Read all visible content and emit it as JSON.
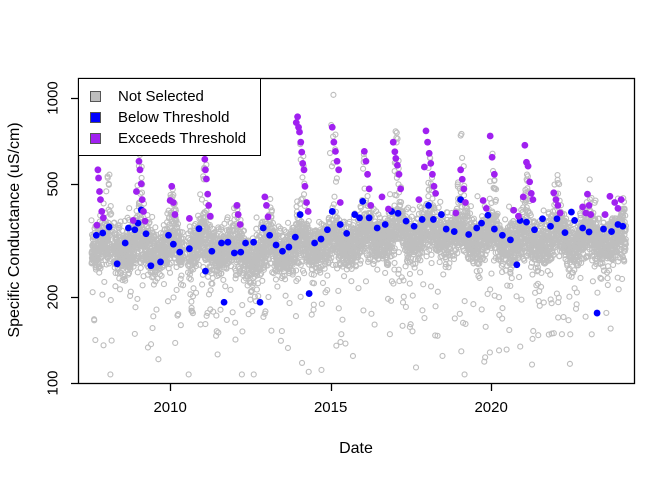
{
  "legend": {
    "items": [
      {
        "label": "Not Selected",
        "color": "#bebebe"
      },
      {
        "label": "Below Threshold",
        "color": "#0000ff"
      },
      {
        "label": "Exceeds Threshold",
        "color": "#a020f0"
      }
    ]
  },
  "chart_data": {
    "type": "scatter",
    "title": "",
    "xlabel": "Date",
    "ylabel": "Specific Conductance (uS/cm)",
    "x_scale": "linear-years",
    "y_scale": "log10",
    "xlim": [
      2007.13,
      2024.45
    ],
    "ylim": [
      100,
      1176
    ],
    "x_ticks": [
      2010,
      2015,
      2020
    ],
    "y_ticks": [
      100,
      200,
      500,
      1000
    ],
    "grid": false,
    "legend_position": "top-left-inside",
    "series": [
      {
        "name": "Not Selected",
        "marker": "open-circle",
        "color": "#bebebe",
        "generated": true,
        "description": "Dense near-daily record ~2007.5-2024.2, baseline ~280-400 uS/cm with winter salt spikes and occasional low dilution outliers down to ~110"
      },
      {
        "name": "Below Threshold",
        "marker": "filled-circle",
        "color": "#0000ff",
        "points": [
          [
            2007.7,
            330
          ],
          [
            2007.9,
            336
          ],
          [
            2008.1,
            353
          ],
          [
            2008.35,
            262
          ],
          [
            2008.6,
            310
          ],
          [
            2008.7,
            350
          ],
          [
            2008.9,
            345
          ],
          [
            2009.0,
            364
          ],
          [
            2009.1,
            405
          ],
          [
            2009.25,
            334
          ],
          [
            2009.4,
            258
          ],
          [
            2009.7,
            266
          ],
          [
            2009.95,
            330
          ],
          [
            2010.1,
            307
          ],
          [
            2010.3,
            288
          ],
          [
            2010.6,
            296
          ],
          [
            2010.9,
            348
          ],
          [
            2011.1,
            247
          ],
          [
            2011.3,
            290
          ],
          [
            2011.6,
            310
          ],
          [
            2011.68,
            192
          ],
          [
            2011.8,
            312
          ],
          [
            2012.0,
            286
          ],
          [
            2012.2,
            288
          ],
          [
            2012.35,
            310
          ],
          [
            2012.6,
            312
          ],
          [
            2012.8,
            192
          ],
          [
            2012.9,
            350
          ],
          [
            2013.1,
            330
          ],
          [
            2013.3,
            305
          ],
          [
            2013.5,
            290
          ],
          [
            2013.7,
            300
          ],
          [
            2013.9,
            325
          ],
          [
            2014.05,
            390
          ],
          [
            2014.33,
            206
          ],
          [
            2014.5,
            310
          ],
          [
            2014.7,
            320
          ],
          [
            2014.9,
            345
          ],
          [
            2015.05,
            400
          ],
          [
            2015.3,
            360
          ],
          [
            2015.5,
            335
          ],
          [
            2015.75,
            390
          ],
          [
            2015.9,
            380
          ],
          [
            2016.0,
            434
          ],
          [
            2016.2,
            380
          ],
          [
            2016.45,
            350
          ],
          [
            2016.7,
            360
          ],
          [
            2016.9,
            400
          ],
          [
            2017.1,
            394
          ],
          [
            2017.35,
            370
          ],
          [
            2017.6,
            355
          ],
          [
            2017.85,
            375
          ],
          [
            2018.05,
            420
          ],
          [
            2018.2,
            375
          ],
          [
            2018.45,
            390
          ],
          [
            2018.6,
            347
          ],
          [
            2018.85,
            340
          ],
          [
            2019.05,
            440
          ],
          [
            2019.3,
            332
          ],
          [
            2019.55,
            350
          ],
          [
            2019.7,
            364
          ],
          [
            2019.9,
            388
          ],
          [
            2020.1,
            347
          ],
          [
            2020.35,
            330
          ],
          [
            2020.6,
            318
          ],
          [
            2020.8,
            260
          ],
          [
            2020.9,
            372
          ],
          [
            2021.1,
            367
          ],
          [
            2021.35,
            345
          ],
          [
            2021.6,
            377
          ],
          [
            2021.85,
            355
          ],
          [
            2022.05,
            377
          ],
          [
            2022.3,
            337
          ],
          [
            2022.5,
            398
          ],
          [
            2022.6,
            372
          ],
          [
            2022.85,
            350
          ],
          [
            2023.05,
            339
          ],
          [
            2023.3,
            176
          ],
          [
            2023.5,
            347
          ],
          [
            2023.75,
            340
          ],
          [
            2023.95,
            360
          ],
          [
            2024.1,
            355
          ]
        ]
      },
      {
        "name": "Exceeds Threshold",
        "marker": "filled-circle",
        "color": "#a020f0",
        "points": [
          [
            2007.72,
            358
          ],
          [
            2007.75,
            560
          ],
          [
            2007.77,
            524
          ],
          [
            2007.8,
            470
          ],
          [
            2007.83,
            440
          ],
          [
            2007.87,
            400
          ],
          [
            2007.92,
            380
          ],
          [
            2008.85,
            372
          ],
          [
            2008.95,
            470
          ],
          [
            2009.0,
            660
          ],
          [
            2009.03,
            600
          ],
          [
            2009.06,
            560
          ],
          [
            2009.1,
            500
          ],
          [
            2009.13,
            440
          ],
          [
            2009.17,
            400
          ],
          [
            2009.22,
            370
          ],
          [
            2010.0,
            437
          ],
          [
            2010.05,
            490
          ],
          [
            2010.1,
            430
          ],
          [
            2010.15,
            390
          ],
          [
            2010.6,
            378
          ],
          [
            2011.02,
            700
          ],
          [
            2011.05,
            650
          ],
          [
            2011.08,
            610
          ],
          [
            2011.1,
            560
          ],
          [
            2011.13,
            520
          ],
          [
            2011.17,
            460
          ],
          [
            2011.2,
            420
          ],
          [
            2011.25,
            385
          ],
          [
            2012.08,
            420
          ],
          [
            2012.12,
            390
          ],
          [
            2012.18,
            360
          ],
          [
            2012.95,
            450
          ],
          [
            2013.0,
            420
          ],
          [
            2013.05,
            383
          ],
          [
            2013.93,
            820
          ],
          [
            2013.97,
            860
          ],
          [
            2014.0,
            790
          ],
          [
            2014.03,
            760
          ],
          [
            2014.07,
            700
          ],
          [
            2014.1,
            646
          ],
          [
            2014.13,
            590
          ],
          [
            2014.17,
            560
          ],
          [
            2014.2,
            490
          ],
          [
            2014.25,
            430
          ],
          [
            2014.3,
            400
          ],
          [
            2015.05,
            790
          ],
          [
            2015.1,
            700
          ],
          [
            2015.15,
            650
          ],
          [
            2015.2,
            600
          ],
          [
            2015.25,
            560
          ],
          [
            2015.3,
            430
          ],
          [
            2016.05,
            650
          ],
          [
            2016.1,
            600
          ],
          [
            2016.15,
            540
          ],
          [
            2016.2,
            480
          ],
          [
            2016.25,
            420
          ],
          [
            2016.6,
            450
          ],
          [
            2016.8,
            408
          ],
          [
            2016.95,
            700
          ],
          [
            2017.0,
            648
          ],
          [
            2017.03,
            614
          ],
          [
            2017.08,
            581
          ],
          [
            2017.13,
            540
          ],
          [
            2017.18,
            480
          ],
          [
            2017.75,
            440
          ],
          [
            2017.92,
            573
          ],
          [
            2017.97,
            767
          ],
          [
            2018.02,
            700
          ],
          [
            2018.07,
            640
          ],
          [
            2018.12,
            590
          ],
          [
            2018.17,
            540
          ],
          [
            2018.22,
            490
          ],
          [
            2018.27,
            463
          ],
          [
            2018.9,
            395
          ],
          [
            2019.05,
            560
          ],
          [
            2019.1,
            519
          ],
          [
            2019.15,
            480
          ],
          [
            2019.2,
            430
          ],
          [
            2019.75,
            437
          ],
          [
            2019.85,
            410
          ],
          [
            2019.97,
            736
          ],
          [
            2020.03,
            620
          ],
          [
            2020.1,
            540
          ],
          [
            2020.7,
            404
          ],
          [
            2020.85,
            385
          ],
          [
            2021.0,
            450
          ],
          [
            2021.05,
            683
          ],
          [
            2021.1,
            595
          ],
          [
            2021.15,
            577
          ],
          [
            2021.2,
            508
          ],
          [
            2021.25,
            463
          ],
          [
            2021.3,
            440
          ],
          [
            2021.95,
            465
          ],
          [
            2022.02,
            440
          ],
          [
            2022.08,
            420
          ],
          [
            2022.15,
            395
          ],
          [
            2022.85,
            415
          ],
          [
            2022.95,
            395
          ],
          [
            2023.0,
            460
          ],
          [
            2023.05,
            420
          ],
          [
            2023.1,
            390
          ],
          [
            2023.55,
            390
          ],
          [
            2023.7,
            452
          ],
          [
            2023.85,
            430
          ],
          [
            2023.95,
            410
          ],
          [
            2024.05,
            440
          ]
        ]
      }
    ],
    "not_selected_generator": {
      "seed": 7,
      "x_start": 2007.55,
      "x_end": 2024.2,
      "points_per_year": 365,
      "base_log10": 2.497,
      "noise_sd": 0.042,
      "season_amp": 0.022,
      "season_phase": 0.05,
      "spike_prob": 0.28,
      "spike_shape": 1.5,
      "dip_prob": 0.04,
      "deep_dip_prob": 0.004,
      "gaps": [
        [
          2010.41,
          2010.55
        ],
        [
          2008.18,
          2008.24
        ]
      ],
      "year_offsets": {
        "2007": -0.02,
        "2008": -0.022,
        "2009": -0.027,
        "2010": -0.02,
        "2011": -0.022,
        "2012": -0.05,
        "2013": -0.032,
        "2014": -0.012,
        "2015": 0.0,
        "2016": 0.018,
        "2017": 0.03,
        "2018": 0.03,
        "2019": 0.02,
        "2020": 0.0,
        "2021": 0.0,
        "2022": 0.006,
        "2023": 0.004,
        "2024": 0.01
      },
      "winter_peaks": {
        "2008": 560,
        "2009": 660,
        "2010": 500,
        "2011": 700,
        "2012": 430,
        "2013": 470,
        "2014": 860,
        "2015": 1080,
        "2016": 660,
        "2017": 830,
        "2018": 740,
        "2019": 810,
        "2020": 700,
        "2021": 620,
        "2022": 540,
        "2023": 530,
        "2024": 470
      }
    }
  }
}
